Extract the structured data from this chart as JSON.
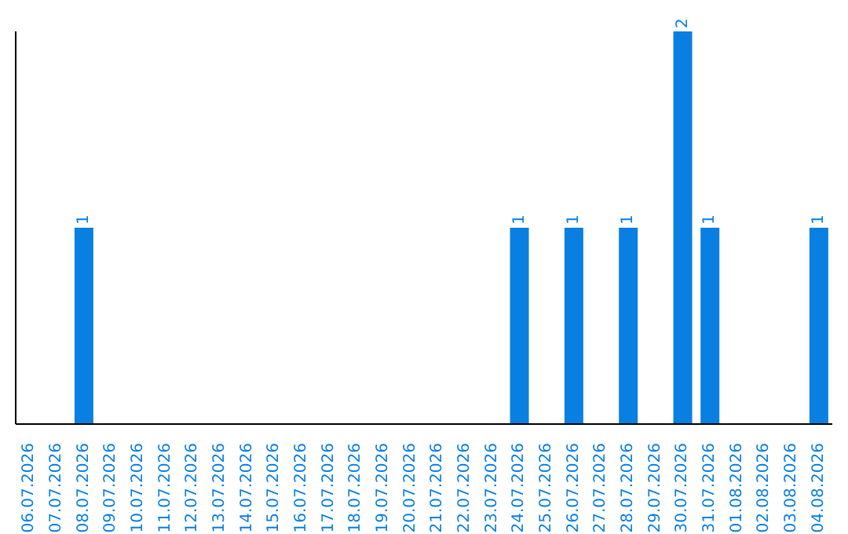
{
  "chart_data": {
    "type": "bar",
    "categories": [
      "06.07.2026",
      "07.07.2026",
      "08.07.2026",
      "09.07.2026",
      "10.07.2026",
      "11.07.2026",
      "12.07.2026",
      "13.07.2026",
      "14.07.2026",
      "15.07.2026",
      "16.07.2026",
      "17.07.2026",
      "18.07.2026",
      "19.07.2026",
      "20.07.2026",
      "21.07.2026",
      "22.07.2026",
      "23.07.2026",
      "24.07.2026",
      "25.07.2026",
      "26.07.2026",
      "27.07.2026",
      "28.07.2026",
      "29.07.2026",
      "30.07.2026",
      "31.07.2026",
      "01.08.2026",
      "02.08.2026",
      "03.08.2026",
      "04.08.2026"
    ],
    "values": [
      0,
      0,
      1,
      0,
      0,
      0,
      0,
      0,
      0,
      0,
      0,
      0,
      0,
      0,
      0,
      0,
      0,
      0,
      1,
      0,
      1,
      0,
      1,
      0,
      2,
      1,
      0,
      0,
      0,
      1
    ],
    "value_labels": [
      null,
      null,
      "1",
      null,
      null,
      null,
      null,
      null,
      null,
      null,
      null,
      null,
      null,
      null,
      null,
      null,
      null,
      null,
      "1",
      null,
      "1",
      null,
      "1",
      null,
      "2",
      "1",
      null,
      null,
      null,
      "1"
    ],
    "color": "#0a7fe2",
    "grid": false,
    "legend": false
  }
}
